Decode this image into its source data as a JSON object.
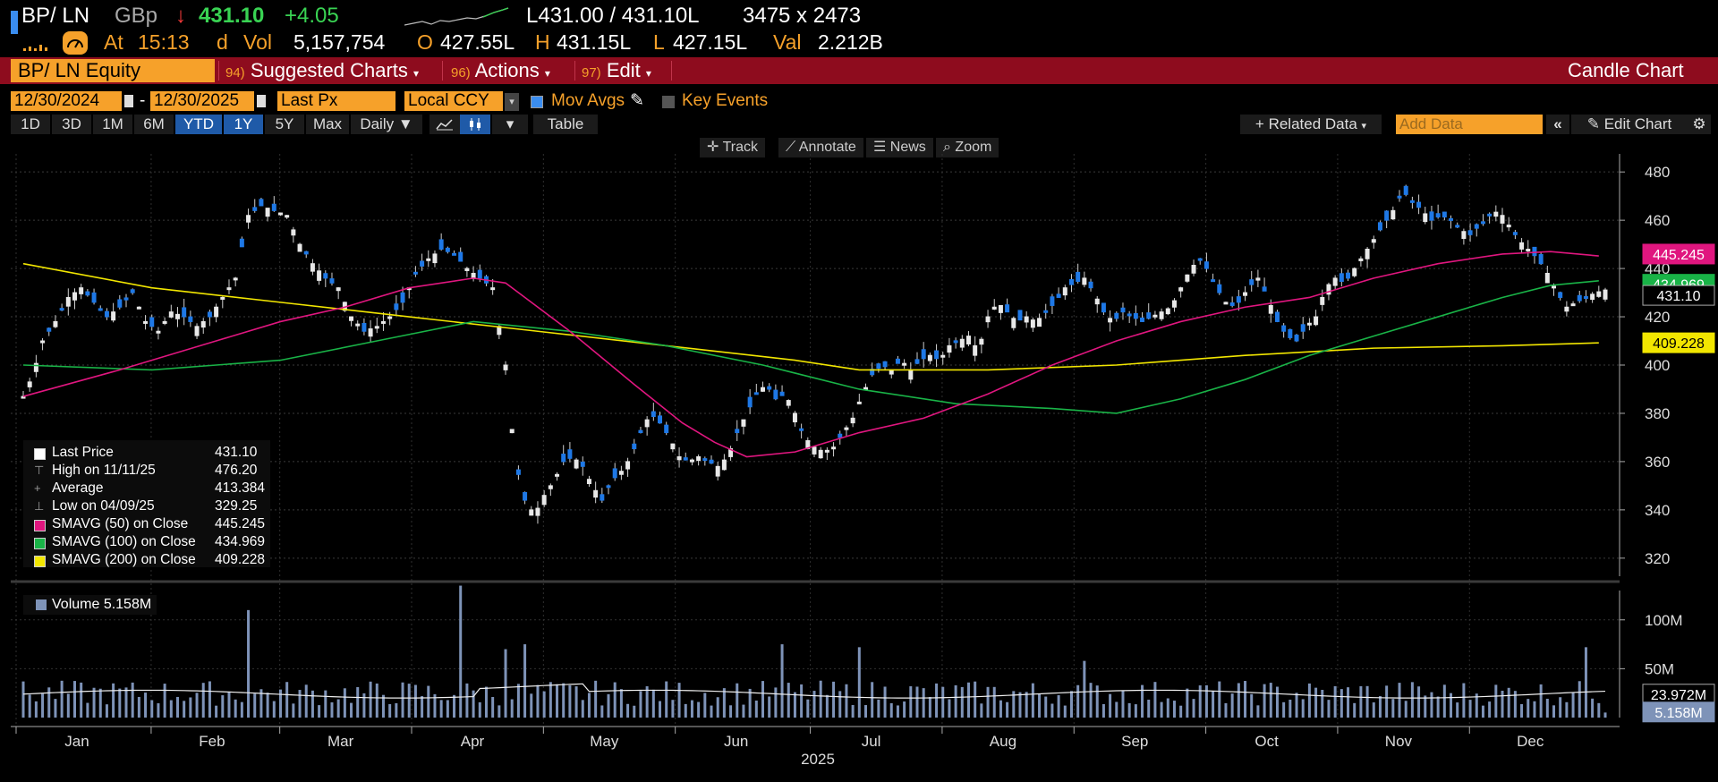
{
  "header": {
    "ticker": "BP/ LN",
    "currency": "GBp",
    "arrow": "↓",
    "last": "431.10",
    "change": "+4.05",
    "bid_ask": "L431.00 / 431.10L",
    "size": "3475 x 2473",
    "at_label": "At",
    "time": "15:13",
    "d": "d",
    "vol_label": "Vol",
    "vol": "5,157,754",
    "o_label": "O",
    "open": "427.55L",
    "h_label": "H",
    "high": "431.15L",
    "l_label": "L",
    "low": "427.15L",
    "val_label": "Val",
    "val": "2.212B"
  },
  "toolbar": {
    "security": "BP/ LN Equity",
    "suggested_num": "94)",
    "suggested": "Suggested Charts",
    "actions_num": "96)",
    "actions": "Actions",
    "edit_num": "97)",
    "edit": "Edit",
    "chart_type": "Candle Chart"
  },
  "controls": {
    "start_date": "12/30/2024",
    "end_date": "12/30/2025",
    "field": "Last Px",
    "ccy": "Local CCY",
    "mov_avgs": "Mov Avgs",
    "key_events": "Key Events",
    "periods": [
      "1D",
      "3D",
      "1M",
      "6M",
      "YTD",
      "1Y",
      "5Y",
      "Max"
    ],
    "frequency": "Daily",
    "table": "Table",
    "related": "+ Related Data",
    "add_data_placeholder": "Add Data",
    "edit_chart": "Edit Chart"
  },
  "tools": [
    "Track",
    "Annotate",
    "News",
    "Zoom"
  ],
  "legend": [
    {
      "label": "Last Price",
      "value": "431.10",
      "color": "#ffffff"
    },
    {
      "label": "High on 11/11/25",
      "value": "476.20",
      "color": ""
    },
    {
      "label": "Average",
      "value": "413.384",
      "color": ""
    },
    {
      "label": "Low on 04/09/25",
      "value": "329.25",
      "color": ""
    },
    {
      "label": "SMAVG (50)  on Close",
      "value": "445.245",
      "color": "#e0167f"
    },
    {
      "label": "SMAVG (100)  on Close",
      "value": "434.969",
      "color": "#19b347"
    },
    {
      "label": "SMAVG (200)  on Close",
      "value": "409.228",
      "color": "#f2e600"
    }
  ],
  "volume_legend": "Volume 5.158M",
  "price_tags": {
    "sma50": "445.245",
    "sma100": "434.969",
    "last": "431.10",
    "sma200": "409.228"
  },
  "volume_tags": {
    "avg": "23.972M",
    "last": "5.158M"
  },
  "chart_data": {
    "type": "candlestick",
    "price_axis": {
      "ticks": [
        320,
        340,
        360,
        380,
        400,
        420,
        440,
        460,
        480
      ],
      "ylim": [
        314,
        486
      ]
    },
    "volume_axis": {
      "ticks": [
        "50M",
        "100M"
      ],
      "tick_values": [
        50,
        100
      ],
      "ylim": [
        0,
        130
      ]
    },
    "months": [
      "Jan",
      "Feb",
      "Mar",
      "Apr",
      "May",
      "Jun",
      "Jul",
      "Aug",
      "Sep",
      "Oct",
      "Nov",
      "Dec"
    ],
    "year": "2025",
    "close_points": [
      [
        0,
        387
      ],
      [
        3,
        396
      ],
      [
        6,
        410
      ],
      [
        10,
        418
      ],
      [
        14,
        428
      ],
      [
        18,
        432
      ],
      [
        22,
        426
      ],
      [
        26,
        420
      ],
      [
        30,
        424
      ],
      [
        34,
        430
      ],
      [
        38,
        418
      ],
      [
        42,
        414
      ],
      [
        46,
        422
      ],
      [
        50,
        420
      ],
      [
        54,
        416
      ],
      [
        58,
        420
      ],
      [
        62,
        428
      ],
      [
        66,
        436
      ],
      [
        70,
        462
      ],
      [
        74,
        466
      ],
      [
        78,
        464
      ],
      [
        82,
        462
      ],
      [
        86,
        450
      ],
      [
        90,
        442
      ],
      [
        94,
        436
      ],
      [
        98,
        432
      ],
      [
        102,
        420
      ],
      [
        106,
        414
      ],
      [
        110,
        416
      ],
      [
        114,
        420
      ],
      [
        118,
        426
      ],
      [
        122,
        438
      ],
      [
        126,
        444
      ],
      [
        130,
        448
      ],
      [
        134,
        446
      ],
      [
        138,
        440
      ],
      [
        142,
        436
      ],
      [
        146,
        432
      ],
      [
        150,
        400
      ],
      [
        153,
        360
      ],
      [
        156,
        344
      ],
      [
        159,
        338
      ],
      [
        162,
        346
      ],
      [
        165,
        352
      ],
      [
        168,
        360
      ],
      [
        171,
        362
      ],
      [
        174,
        358
      ],
      [
        177,
        350
      ],
      [
        180,
        344
      ],
      [
        183,
        352
      ],
      [
        186,
        356
      ],
      [
        189,
        362
      ],
      [
        192,
        372
      ],
      [
        195,
        380
      ],
      [
        198,
        376
      ],
      [
        201,
        370
      ],
      [
        204,
        362
      ],
      [
        207,
        360
      ],
      [
        210,
        362
      ],
      [
        213,
        360
      ],
      [
        216,
        358
      ],
      [
        219,
        362
      ],
      [
        222,
        372
      ],
      [
        225,
        380
      ],
      [
        228,
        388
      ],
      [
        231,
        392
      ],
      [
        234,
        386
      ],
      [
        237,
        388
      ],
      [
        240,
        380
      ],
      [
        243,
        370
      ],
      [
        246,
        366
      ],
      [
        249,
        364
      ],
      [
        252,
        366
      ],
      [
        255,
        372
      ],
      [
        258,
        378
      ],
      [
        261,
        388
      ],
      [
        264,
        396
      ],
      [
        267,
        400
      ],
      [
        270,
        398
      ],
      [
        273,
        402
      ],
      [
        276,
        398
      ],
      [
        279,
        402
      ],
      [
        282,
        404
      ],
      [
        285,
        402
      ],
      [
        288,
        408
      ],
      [
        291,
        410
      ],
      [
        294,
        412
      ],
      [
        297,
        406
      ],
      [
        300,
        420
      ],
      [
        303,
        426
      ],
      [
        306,
        422
      ],
      [
        309,
        418
      ],
      [
        312,
        420
      ],
      [
        315,
        418
      ],
      [
        318,
        422
      ],
      [
        321,
        426
      ],
      [
        324,
        432
      ],
      [
        327,
        434
      ],
      [
        330,
        436
      ],
      [
        333,
        430
      ],
      [
        336,
        422
      ],
      [
        339,
        418
      ],
      [
        342,
        422
      ],
      [
        345,
        420
      ],
      [
        348,
        418
      ],
      [
        351,
        420
      ],
      [
        354,
        422
      ],
      [
        357,
        424
      ],
      [
        360,
        432
      ],
      [
        363,
        440
      ],
      [
        366,
        444
      ],
      [
        369,
        438
      ],
      [
        372,
        430
      ],
      [
        375,
        424
      ],
      [
        378,
        426
      ],
      [
        381,
        432
      ],
      [
        384,
        436
      ],
      [
        387,
        428
      ],
      [
        390,
        418
      ],
      [
        393,
        412
      ],
      [
        396,
        410
      ],
      [
        399,
        416
      ],
      [
        402,
        420
      ],
      [
        405,
        432
      ],
      [
        408,
        436
      ],
      [
        411,
        434
      ],
      [
        414,
        440
      ],
      [
        417,
        446
      ],
      [
        420,
        452
      ],
      [
        423,
        458
      ],
      [
        426,
        464
      ],
      [
        429,
        472
      ],
      [
        432,
        468
      ],
      [
        435,
        464
      ],
      [
        438,
        460
      ],
      [
        441,
        462
      ],
      [
        444,
        460
      ],
      [
        447,
        456
      ],
      [
        450,
        454
      ],
      [
        453,
        458
      ],
      [
        456,
        462
      ],
      [
        459,
        464
      ],
      [
        462,
        458
      ],
      [
        465,
        452
      ],
      [
        468,
        448
      ],
      [
        471,
        444
      ],
      [
        474,
        438
      ],
      [
        477,
        430
      ],
      [
        480,
        424
      ],
      [
        483,
        426
      ],
      [
        486,
        428
      ],
      [
        489,
        430
      ],
      [
        492,
        431.1
      ]
    ],
    "sma50_points": [
      [
        0,
        387
      ],
      [
        30,
        398
      ],
      [
        60,
        410
      ],
      [
        80,
        418
      ],
      [
        100,
        424
      ],
      [
        120,
        432
      ],
      [
        140,
        436
      ],
      [
        150,
        434
      ],
      [
        170,
        414
      ],
      [
        190,
        392
      ],
      [
        205,
        376
      ],
      [
        215,
        368
      ],
      [
        225,
        362
      ],
      [
        240,
        364
      ],
      [
        260,
        372
      ],
      [
        280,
        378
      ],
      [
        300,
        388
      ],
      [
        320,
        400
      ],
      [
        340,
        410
      ],
      [
        360,
        418
      ],
      [
        380,
        424
      ],
      [
        400,
        428
      ],
      [
        420,
        436
      ],
      [
        440,
        442
      ],
      [
        460,
        446
      ],
      [
        475,
        447
      ],
      [
        490,
        445.2
      ]
    ],
    "sma100_points": [
      [
        0,
        400
      ],
      [
        40,
        398
      ],
      [
        80,
        402
      ],
      [
        110,
        410
      ],
      [
        140,
        418
      ],
      [
        170,
        414
      ],
      [
        200,
        408
      ],
      [
        230,
        400
      ],
      [
        260,
        390
      ],
      [
        290,
        384
      ],
      [
        320,
        382
      ],
      [
        340,
        380
      ],
      [
        360,
        386
      ],
      [
        380,
        394
      ],
      [
        400,
        404
      ],
      [
        420,
        412
      ],
      [
        440,
        420
      ],
      [
        460,
        428
      ],
      [
        475,
        433
      ],
      [
        490,
        434.9
      ]
    ],
    "sma200_points": [
      [
        0,
        442
      ],
      [
        40,
        432
      ],
      [
        80,
        426
      ],
      [
        120,
        420
      ],
      [
        160,
        414
      ],
      [
        200,
        408
      ],
      [
        240,
        402
      ],
      [
        260,
        398
      ],
      [
        300,
        398
      ],
      [
        340,
        400
      ],
      [
        380,
        404
      ],
      [
        420,
        407
      ],
      [
        460,
        408
      ],
      [
        490,
        409.2
      ]
    ],
    "volume_avg": 24,
    "volume_last": 5.158
  }
}
